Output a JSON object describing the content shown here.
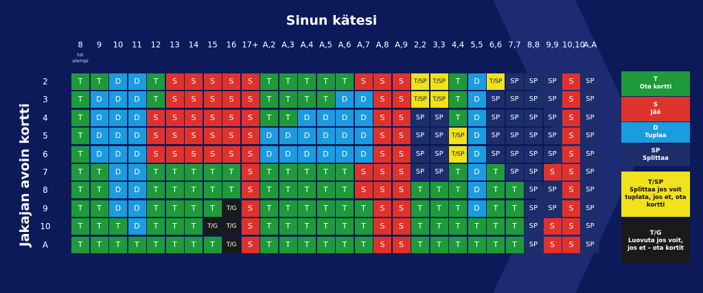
{
  "title": "Sinun kätesi",
  "ylabel": "Jakajan avoin kortti",
  "columns": [
    {
      "label": "8",
      "sub": "tai alempi"
    },
    {
      "label": "9"
    },
    {
      "label": "10"
    },
    {
      "label": "11"
    },
    {
      "label": "12"
    },
    {
      "label": "13"
    },
    {
      "label": "14"
    },
    {
      "label": "15"
    },
    {
      "label": "16"
    },
    {
      "label": "17+"
    },
    {
      "label": "A,2"
    },
    {
      "label": "A,3"
    },
    {
      "label": "A,4"
    },
    {
      "label": "A,5"
    },
    {
      "label": "A,6"
    },
    {
      "label": "A,7"
    },
    {
      "label": "A,8"
    },
    {
      "label": "A,9"
    },
    {
      "label": "2,2"
    },
    {
      "label": "3,3"
    },
    {
      "label": "4,4"
    },
    {
      "label": "5,5"
    },
    {
      "label": "6,6"
    },
    {
      "label": "7,7"
    },
    {
      "label": "8,8"
    },
    {
      "label": "9,9"
    },
    {
      "label": "10,10"
    },
    {
      "label": "A,A"
    }
  ],
  "rows": [
    {
      "label": "2",
      "cells": [
        "T",
        "T",
        "D",
        "D",
        "T",
        "S",
        "S",
        "S",
        "S",
        "S",
        "T",
        "T",
        "T",
        "T",
        "T",
        "S",
        "S",
        "S",
        "T/SP",
        "T/SP",
        "T",
        "D",
        "T/SP",
        "SP",
        "SP",
        "SP",
        "S",
        "SP"
      ]
    },
    {
      "label": "3",
      "cells": [
        "T",
        "D",
        "D",
        "D",
        "T",
        "S",
        "S",
        "S",
        "S",
        "S",
        "T",
        "T",
        "T",
        "T",
        "D",
        "D",
        "S",
        "S",
        "T/SP",
        "T/SP",
        "T",
        "D",
        "SP",
        "SP",
        "SP",
        "SP",
        "S",
        "SP"
      ]
    },
    {
      "label": "4",
      "cells": [
        "T",
        "D",
        "D",
        "D",
        "S",
        "S",
        "S",
        "S",
        "S",
        "S",
        "T",
        "T",
        "D",
        "D",
        "D",
        "D",
        "S",
        "S",
        "SP",
        "SP",
        "T",
        "D",
        "SP",
        "SP",
        "SP",
        "SP",
        "S",
        "SP"
      ]
    },
    {
      "label": "5",
      "cells": [
        "T",
        "D",
        "D",
        "D",
        "S",
        "S",
        "S",
        "S",
        "S",
        "S",
        "D",
        "D",
        "D",
        "D",
        "D",
        "D",
        "S",
        "S",
        "SP",
        "SP",
        "T/SP",
        "D",
        "SP",
        "SP",
        "SP",
        "SP",
        "S",
        "SP"
      ]
    },
    {
      "label": "6",
      "cells": [
        "T",
        "D",
        "D",
        "D",
        "S",
        "S",
        "S",
        "S",
        "S",
        "S",
        "D",
        "D",
        "D",
        "D",
        "D",
        "D",
        "S",
        "S",
        "SP",
        "SP",
        "T/SP",
        "D",
        "SP",
        "SP",
        "SP",
        "SP",
        "S",
        "SP"
      ]
    },
    {
      "label": "7",
      "cells": [
        "T",
        "T",
        "D",
        "D",
        "T",
        "T",
        "T",
        "T",
        "T",
        "S",
        "T",
        "T",
        "T",
        "T",
        "T",
        "S",
        "S",
        "S",
        "SP",
        "SP",
        "T",
        "D",
        "T",
        "SP",
        "SP",
        "S",
        "S",
        "SP"
      ]
    },
    {
      "label": "8",
      "cells": [
        "T",
        "T",
        "D",
        "D",
        "T",
        "T",
        "T",
        "T",
        "T",
        "S",
        "T",
        "T",
        "T",
        "T",
        "T",
        "S",
        "S",
        "S",
        "T",
        "T",
        "T",
        "D",
        "T",
        "T",
        "SP",
        "SP",
        "S",
        "SP"
      ]
    },
    {
      "label": "9",
      "cells": [
        "T",
        "T",
        "D",
        "D",
        "T",
        "T",
        "T",
        "T",
        "T/G",
        "S",
        "T",
        "T",
        "T",
        "T",
        "T",
        "T",
        "S",
        "S",
        "T",
        "T",
        "T",
        "D",
        "T",
        "T",
        "SP",
        "SP",
        "S",
        "SP"
      ]
    },
    {
      "label": "10",
      "cells": [
        "T",
        "T",
        "T",
        "D",
        "T",
        "T",
        "T",
        "T/G",
        "T/G",
        "S",
        "T",
        "T",
        "T",
        "T",
        "T",
        "T",
        "S",
        "S",
        "T",
        "T",
        "T",
        "T",
        "T",
        "T",
        "SP",
        "S",
        "S",
        "SP"
      ]
    },
    {
      "label": "A",
      "cells": [
        "T",
        "T",
        "T",
        "T",
        "T",
        "T",
        "T",
        "T",
        "T/G",
        "S",
        "T",
        "T",
        "T",
        "T",
        "T",
        "T",
        "S",
        "S",
        "T",
        "T",
        "T",
        "T",
        "T",
        "T",
        "SP",
        "S",
        "S",
        "SP"
      ]
    }
  ],
  "legend": [
    {
      "key": "T",
      "text": "Ota kortti",
      "color": "#1e9a3b",
      "fg": "#ffffff"
    },
    {
      "key": "S",
      "text": "Jää",
      "color": "#e0322c",
      "fg": "#ffffff"
    },
    {
      "key": "D",
      "text": "Tuplaa",
      "color": "#1b9be0",
      "fg": "#ffffff"
    },
    {
      "key": "SP",
      "text": "Splittaa",
      "color": "#1d2e6b",
      "fg": "#ffffff"
    },
    {
      "key": "T/SP",
      "text": "Splittaa jos voit tuplata, jos et, ota kortti",
      "color": "#f1e21c",
      "fg": "#111111"
    },
    {
      "key": "T/G",
      "text": "Luovuta jos voit, jos et – ota kortit",
      "color": "#1a1a1a",
      "fg": "#ffffff"
    }
  ],
  "colors": {
    "background": "#0c1a5a",
    "chevron": "#1c2b72"
  }
}
